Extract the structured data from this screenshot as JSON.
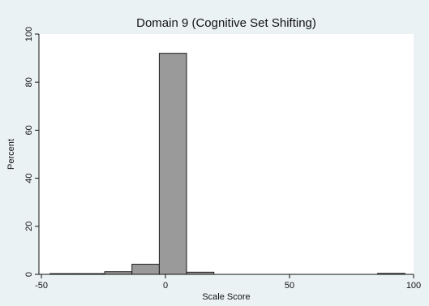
{
  "chart_data": {
    "type": "bar",
    "title": "Domain 9 (Cognitive Set Shifting)",
    "xlabel": "Scale Score",
    "ylabel": "Percent",
    "xlim": [
      -51,
      100
    ],
    "ylim": [
      0,
      100
    ],
    "xticks": [
      -50,
      0,
      50,
      100
    ],
    "yticks": [
      0,
      20,
      40,
      60,
      80,
      100
    ],
    "bins": [
      {
        "start": -46.5,
        "end": -35.5,
        "value": 0.3
      },
      {
        "start": -35.5,
        "end": -24.5,
        "value": 0.3
      },
      {
        "start": -24.5,
        "end": -13.5,
        "value": 1.1
      },
      {
        "start": -13.5,
        "end": -2.5,
        "value": 4.2
      },
      {
        "start": -2.5,
        "end": 8.5,
        "value": 92.0
      },
      {
        "start": 8.5,
        "end": 19.5,
        "value": 0.9
      },
      {
        "start": 85.5,
        "end": 96.5,
        "value": 0.4
      }
    ],
    "grid": false,
    "background": "#eaf2f3",
    "plot_background": "#ffffff",
    "bar_color": "#9a9a9a"
  }
}
